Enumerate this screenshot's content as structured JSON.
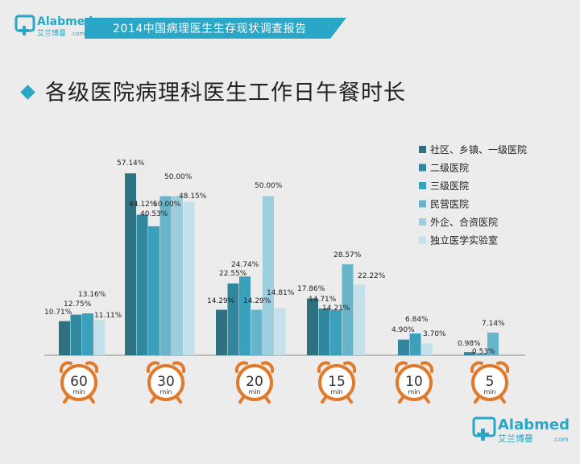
{
  "header": {
    "title": "2014中国病理医生生存现状调查报告",
    "logo_text": "Alabmed",
    "logo_sub": "艾兰博曼",
    "logo_com": ".com"
  },
  "page_title": "各级医院病理科医生工作日午餐时长",
  "footer_logo": {
    "text": "Alabmed",
    "sub": "艾兰博曼",
    "com": ".com"
  },
  "colors": {
    "header_bar": "#2aa6c6",
    "clock": "#e07a2a",
    "axis": "#888888"
  },
  "chart_data": {
    "type": "bar",
    "categories": [
      "60",
      "30",
      "20",
      "15",
      "10",
      "5"
    ],
    "category_unit": "min",
    "series": [
      {
        "name": "社区、乡镇、一级医院",
        "color": "#2e7181",
        "values": [
          10.71,
          57.14,
          14.29,
          17.86,
          null,
          null
        ],
        "labels": [
          "10.71%",
          "57.14%",
          "14.29%",
          "17.86%",
          "",
          ""
        ]
      },
      {
        "name": "二级医院",
        "color": "#31889e",
        "values": [
          12.75,
          44.12,
          22.55,
          14.71,
          4.9,
          0.98
        ],
        "labels": [
          "12.75%",
          "44.12%",
          "22.55%",
          "14.71%",
          "4.90%",
          "0.98%"
        ]
      },
      {
        "name": "三级医院",
        "color": "#3ba0bc",
        "values": [
          13.16,
          40.53,
          24.74,
          14.21,
          6.84,
          0.53
        ],
        "labels": [
          "13.16%",
          "40.53%",
          "24.74%",
          "14.21%",
          "6.84%",
          "0.53%"
        ]
      },
      {
        "name": "民营医院",
        "color": "#68b5cb",
        "values": [
          null,
          50.0,
          14.29,
          28.57,
          null,
          7.14
        ],
        "labels": [
          "",
          "50.00%",
          "14.29%",
          "28.57%",
          "",
          "7.14%"
        ]
      },
      {
        "name": "外企、合资医院",
        "color": "#9ccedd",
        "values": [
          null,
          50.0,
          50.0,
          null,
          null,
          null
        ],
        "labels": [
          "",
          "50.00%",
          "50.00%",
          "",
          "",
          ""
        ]
      },
      {
        "name": "独立医学实验室",
        "color": "#c4e0ea",
        "values": [
          11.11,
          48.15,
          14.81,
          22.22,
          3.7,
          null
        ],
        "labels": [
          "11.11%",
          "48.15%",
          "14.81%",
          "22.22%",
          "3.70%",
          ""
        ]
      }
    ],
    "ylim": [
      0,
      60
    ],
    "grid": false,
    "legend_position": "top-right"
  }
}
